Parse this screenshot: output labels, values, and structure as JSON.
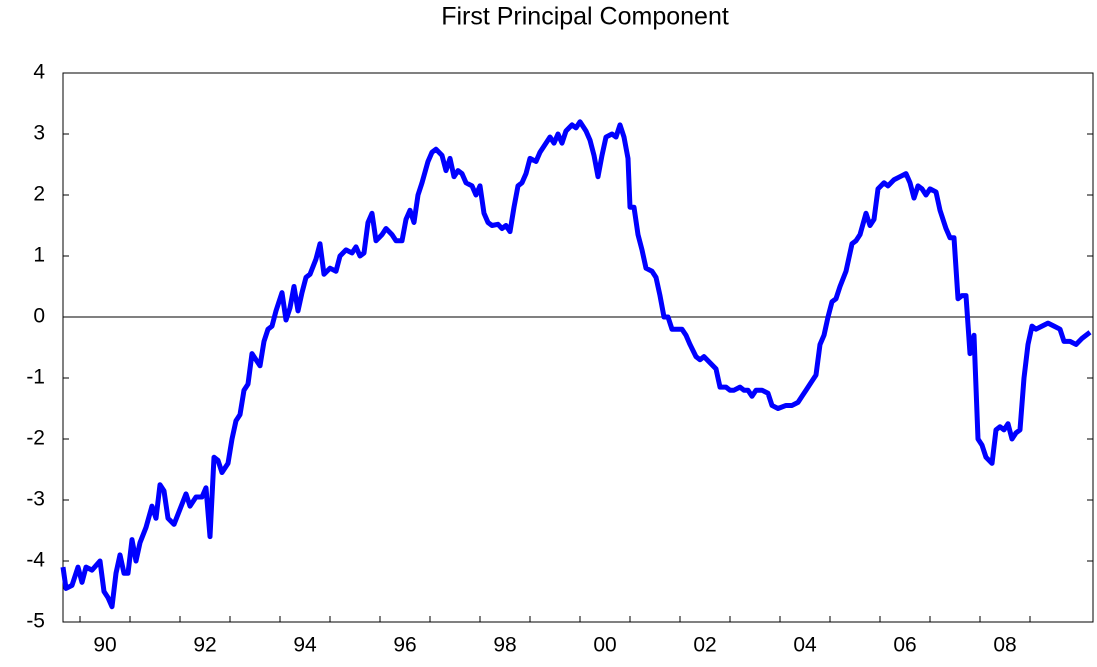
{
  "chart_data": {
    "type": "line",
    "title": "First Principal Component",
    "x": [
      1989.66,
      1989.72,
      1989.84,
      1989.96,
      1990.04,
      1990.12,
      1990.24,
      1990.4,
      1990.48,
      1990.56,
      1990.64,
      1990.72,
      1990.8,
      1990.88,
      1990.96,
      1991.04,
      1991.12,
      1991.2,
      1991.32,
      1991.44,
      1991.52,
      1991.6,
      1991.68,
      1991.76,
      1991.88,
      1992.0,
      1992.12,
      1992.2,
      1992.32,
      1992.44,
      1992.52,
      1992.6,
      1992.68,
      1992.76,
      1992.84,
      1992.96,
      1993.04,
      1993.12,
      1993.2,
      1993.28,
      1993.36,
      1993.44,
      1993.52,
      1993.6,
      1993.68,
      1993.76,
      1993.84,
      1993.92,
      1994.04,
      1994.12,
      1994.2,
      1994.28,
      1994.36,
      1994.44,
      1994.52,
      1994.6,
      1994.72,
      1994.8,
      1994.88,
      1995.0,
      1995.12,
      1995.2,
      1995.32,
      1995.44,
      1995.52,
      1995.6,
      1995.68,
      1995.76,
      1995.84,
      1995.92,
      1996.04,
      1996.12,
      1996.24,
      1996.32,
      1996.44,
      1996.52,
      1996.6,
      1996.68,
      1996.76,
      1996.84,
      1996.96,
      1997.04,
      1997.12,
      1997.24,
      1997.32,
      1997.4,
      1997.48,
      1997.56,
      1997.64,
      1997.72,
      1997.84,
      1997.92,
      1998.0,
      1998.08,
      1998.16,
      1998.24,
      1998.36,
      1998.44,
      1998.52,
      1998.6,
      1998.68,
      1998.76,
      1998.84,
      1998.92,
      1999.0,
      1999.12,
      1999.2,
      1999.32,
      1999.4,
      1999.48,
      1999.56,
      1999.64,
      1999.72,
      1999.84,
      1999.92,
      2000.0,
      2000.12,
      2000.2,
      2000.28,
      2000.36,
      2000.44,
      2000.52,
      2000.64,
      2000.72,
      2000.8,
      2000.88,
      2000.96,
      2001.0,
      2001.08,
      2001.16,
      2001.24,
      2001.32,
      2001.44,
      2001.52,
      2001.6,
      2001.68,
      2001.76,
      2001.84,
      2001.92,
      2002.04,
      2002.12,
      2002.2,
      2002.32,
      2002.4,
      2002.48,
      2002.6,
      2002.72,
      2002.8,
      2002.92,
      2003.0,
      2003.08,
      2003.2,
      2003.28,
      2003.36,
      2003.44,
      2003.52,
      2003.64,
      2003.76,
      2003.84,
      2003.96,
      2004.12,
      2004.24,
      2004.36,
      2004.44,
      2004.52,
      2004.6,
      2004.72,
      2004.8,
      2004.88,
      2004.96,
      2005.04,
      2005.12,
      2005.2,
      2005.32,
      2005.44,
      2005.52,
      2005.6,
      2005.72,
      2005.8,
      2005.88,
      2005.96,
      2006.08,
      2006.16,
      2006.28,
      2006.4,
      2006.52,
      2006.6,
      2006.68,
      2006.76,
      2006.84,
      2006.92,
      2007.0,
      2007.12,
      2007.2,
      2007.32,
      2007.4,
      2007.48,
      2007.56,
      2007.64,
      2007.72,
      2007.8,
      2007.88,
      2007.96,
      2008.04,
      2008.12,
      2008.24,
      2008.32,
      2008.4,
      2008.48,
      2008.56,
      2008.64,
      2008.72,
      2008.8,
      2008.88,
      2008.96,
      2009.04,
      2009.12,
      2009.24,
      2009.36,
      2009.48,
      2009.6,
      2009.68,
      2009.8,
      2009.92,
      2010.04,
      2010.2
    ],
    "values": [
      -4.1,
      -4.45,
      -4.4,
      -4.1,
      -4.35,
      -4.1,
      -4.15,
      -4.0,
      -4.5,
      -4.6,
      -4.75,
      -4.2,
      -3.9,
      -4.2,
      -4.2,
      -3.65,
      -4.0,
      -3.7,
      -3.45,
      -3.1,
      -3.3,
      -2.75,
      -2.85,
      -3.3,
      -3.4,
      -3.15,
      -2.9,
      -3.1,
      -2.95,
      -2.95,
      -2.8,
      -3.6,
      -2.3,
      -2.35,
      -2.55,
      -2.4,
      -2.0,
      -1.7,
      -1.6,
      -1.2,
      -1.1,
      -0.6,
      -0.7,
      -0.8,
      -0.4,
      -0.2,
      -0.15,
      0.1,
      0.4,
      -0.05,
      0.15,
      0.5,
      0.1,
      0.4,
      0.65,
      0.7,
      0.95,
      1.2,
      0.7,
      0.8,
      0.75,
      1.0,
      1.1,
      1.05,
      1.15,
      1.0,
      1.05,
      1.55,
      1.7,
      1.25,
      1.35,
      1.45,
      1.35,
      1.25,
      1.25,
      1.6,
      1.75,
      1.55,
      2.0,
      2.2,
      2.55,
      2.7,
      2.75,
      2.65,
      2.4,
      2.6,
      2.3,
      2.4,
      2.35,
      2.2,
      2.15,
      2.0,
      2.15,
      1.7,
      1.55,
      1.5,
      1.52,
      1.45,
      1.5,
      1.4,
      1.8,
      2.15,
      2.2,
      2.35,
      2.6,
      2.55,
      2.7,
      2.85,
      2.95,
      2.85,
      3.0,
      2.85,
      3.05,
      3.15,
      3.1,
      3.2,
      3.05,
      2.9,
      2.65,
      2.3,
      2.65,
      2.95,
      3.0,
      2.95,
      3.15,
      2.95,
      2.6,
      1.8,
      1.8,
      1.35,
      1.1,
      0.8,
      0.75,
      0.65,
      0.35,
      0.0,
      0.0,
      -0.2,
      -0.2,
      -0.2,
      -0.3,
      -0.45,
      -0.65,
      -0.7,
      -0.65,
      -0.75,
      -0.85,
      -1.15,
      -1.15,
      -1.2,
      -1.2,
      -1.15,
      -1.2,
      -1.2,
      -1.3,
      -1.2,
      -1.2,
      -1.25,
      -1.45,
      -1.5,
      -1.45,
      -1.45,
      -1.4,
      -1.3,
      -1.2,
      -1.1,
      -0.95,
      -0.45,
      -0.3,
      0.0,
      0.25,
      0.3,
      0.5,
      0.75,
      1.2,
      1.25,
      1.35,
      1.7,
      1.5,
      1.6,
      2.1,
      2.2,
      2.15,
      2.25,
      2.3,
      2.35,
      2.2,
      1.95,
      2.15,
      2.1,
      2.0,
      2.1,
      2.05,
      1.75,
      1.45,
      1.3,
      1.3,
      0.3,
      0.35,
      0.35,
      -0.6,
      -0.3,
      -2.0,
      -2.1,
      -2.3,
      -2.4,
      -1.85,
      -1.8,
      -1.85,
      -1.75,
      -2.0,
      -1.9,
      -1.85,
      -1.0,
      -0.45,
      -0.15,
      -0.2,
      -0.15,
      -0.1,
      -0.15,
      -0.2,
      -0.4,
      -0.4,
      -0.45,
      -0.35,
      -0.25
    ],
    "color": "#0000ff",
    "xlim": [
      1989.66,
      2010.26
    ],
    "xticks": [
      {
        "value": 1990.5,
        "label": "90"
      },
      {
        "value": 1992.5,
        "label": "92"
      },
      {
        "value": 1994.5,
        "label": "94"
      },
      {
        "value": 1996.5,
        "label": "96"
      },
      {
        "value": 1998.5,
        "label": "98"
      },
      {
        "value": 2000.5,
        "label": "00"
      },
      {
        "value": 2002.5,
        "label": "02"
      },
      {
        "value": 2004.5,
        "label": "04"
      },
      {
        "value": 2006.5,
        "label": "06"
      },
      {
        "value": 2008.5,
        "label": "08"
      }
    ],
    "ylim": [
      -5,
      4
    ],
    "yticks": [
      -5,
      -4,
      -3,
      -2,
      -1,
      0,
      1,
      2,
      3,
      4
    ],
    "zero_line": true,
    "grid": false
  }
}
